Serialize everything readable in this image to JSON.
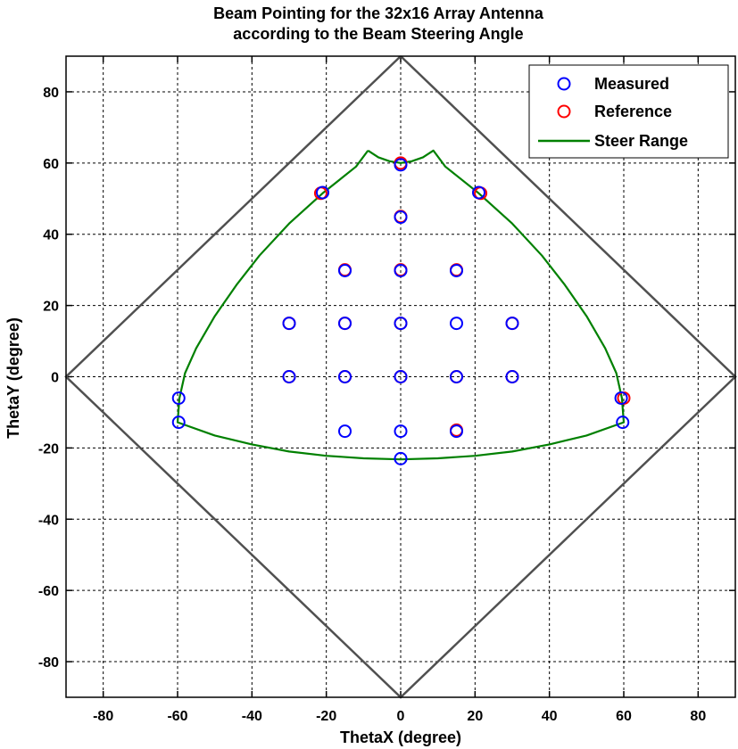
{
  "chart_data": {
    "type": "scatter",
    "title": [
      "Beam Pointing for the 32x16 Array Antenna",
      "according to the Beam Steering Angle"
    ],
    "xlabel": "ThetaX (degree)",
    "ylabel": "ThetaY (degree)",
    "xlim": [
      -90,
      90
    ],
    "ylim": [
      -90,
      90
    ],
    "xticks": [
      -80,
      -60,
      -40,
      -20,
      0,
      20,
      40,
      60,
      80
    ],
    "yticks": [
      -80,
      -60,
      -40,
      -20,
      0,
      20,
      40,
      60,
      80
    ],
    "grid": true,
    "legend_position": "top-right",
    "colors": {
      "measured": "#0000ff",
      "reference": "#ff0000",
      "steer_range": "#008000",
      "boundary": "#505050"
    },
    "series": [
      {
        "name": "Measured",
        "marker": "circle",
        "points": [
          [
            0,
            59.5
          ],
          [
            -21,
            51.7
          ],
          [
            21,
            51.7
          ],
          [
            0,
            44.8
          ],
          [
            -15,
            29.8
          ],
          [
            0,
            29.8
          ],
          [
            15,
            29.8
          ],
          [
            -30,
            15
          ],
          [
            -15,
            15
          ],
          [
            0,
            15
          ],
          [
            15,
            15
          ],
          [
            30,
            15
          ],
          [
            -30,
            0
          ],
          [
            -15,
            0
          ],
          [
            0,
            0
          ],
          [
            15,
            0
          ],
          [
            30,
            0
          ],
          [
            -59.7,
            -6
          ],
          [
            59.3,
            -6
          ],
          [
            -59.7,
            -12.8
          ],
          [
            59.7,
            -12.8
          ],
          [
            -15,
            -15.3
          ],
          [
            0,
            -15.3
          ],
          [
            15,
            -15.3
          ],
          [
            0,
            -23
          ]
        ]
      },
      {
        "name": "Reference",
        "marker": "circle",
        "points": [
          [
            0,
            60
          ],
          [
            -21.5,
            51.5
          ],
          [
            21.5,
            51.5
          ],
          [
            0,
            45
          ],
          [
            -15,
            30
          ],
          [
            0,
            30
          ],
          [
            15,
            30
          ],
          [
            -30,
            15
          ],
          [
            -15,
            15
          ],
          [
            0,
            15
          ],
          [
            30,
            15
          ],
          [
            -30,
            0
          ],
          [
            -15,
            0
          ],
          [
            0,
            0
          ],
          [
            15,
            0
          ],
          [
            30,
            0
          ],
          [
            60,
            -6
          ],
          [
            15,
            -15
          ]
        ]
      },
      {
        "name": "Steer Range",
        "type": "line",
        "points": [
          [
            -8.8,
            63.5
          ],
          [
            -6,
            61.6
          ],
          [
            -3,
            60.5
          ],
          [
            0,
            60
          ],
          [
            3,
            60.5
          ],
          [
            6,
            61.6
          ],
          [
            8.8,
            63.5
          ],
          [
            12,
            59
          ],
          [
            21,
            51.5
          ],
          [
            30,
            43
          ],
          [
            38,
            34
          ],
          [
            44,
            26
          ],
          [
            50,
            17
          ],
          [
            55,
            8
          ],
          [
            58,
            1
          ],
          [
            59.5,
            -6
          ],
          [
            60,
            -12.8
          ],
          [
            50,
            -16.5
          ],
          [
            40,
            -19
          ],
          [
            30,
            -21
          ],
          [
            20,
            -22.2
          ],
          [
            10,
            -22.9
          ],
          [
            0,
            -23.2
          ],
          [
            -10,
            -22.9
          ],
          [
            -20,
            -22.2
          ],
          [
            -30,
            -21
          ],
          [
            -40,
            -19
          ],
          [
            -50,
            -16.5
          ],
          [
            -60,
            -12.8
          ],
          [
            -59.5,
            -6
          ],
          [
            -58,
            1
          ],
          [
            -55,
            8
          ],
          [
            -50,
            17
          ],
          [
            -44,
            26
          ],
          [
            -38,
            34
          ],
          [
            -30,
            43
          ],
          [
            -21,
            51.5
          ],
          [
            -12,
            59
          ],
          [
            -8.8,
            63.5
          ]
        ]
      },
      {
        "type": "line",
        "points": [
          [
            0,
            90
          ],
          [
            90,
            0
          ],
          [
            0,
            -90
          ],
          [
            -90,
            0
          ],
          [
            0,
            90
          ]
        ]
      }
    ]
  }
}
